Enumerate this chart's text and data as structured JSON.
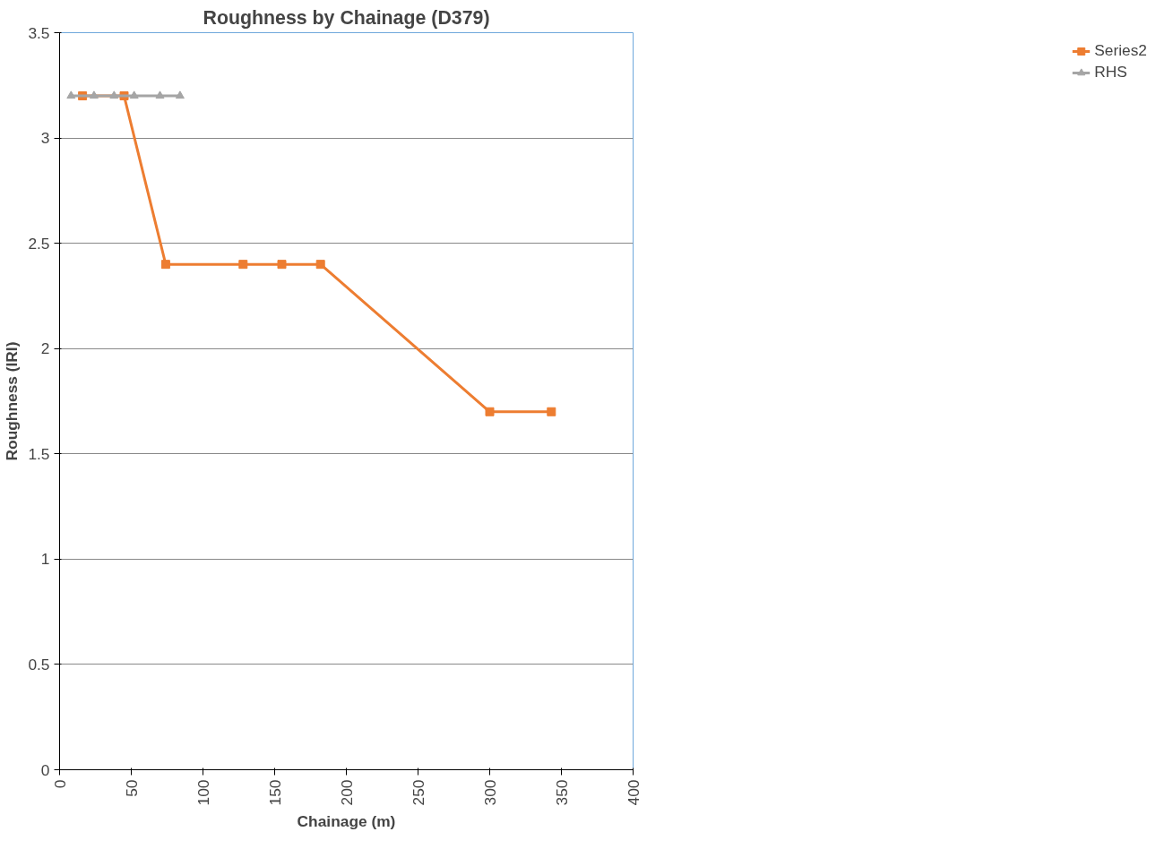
{
  "chart_data": {
    "type": "line",
    "title": "Roughness by Chainage (D379)",
    "xlabel": "Chainage (m)",
    "ylabel": "Roughness (IRI)",
    "xlim": [
      0,
      400
    ],
    "xticks": [
      0,
      50,
      100,
      150,
      200,
      250,
      300,
      350,
      400
    ],
    "ylim": [
      0,
      3.5
    ],
    "yticks": [
      0,
      0.5,
      1,
      1.5,
      2,
      2.5,
      3,
      3.5
    ],
    "grid": "y",
    "legend": "right",
    "series": [
      {
        "name": "Series2",
        "color": "#ed7d31",
        "marker": "square",
        "x": [
          16,
          45,
          74,
          128,
          155,
          182,
          300,
          343
        ],
        "values": [
          3.2,
          3.2,
          2.4,
          2.4,
          2.4,
          2.4,
          1.7,
          1.7
        ]
      },
      {
        "name": "RHS",
        "color": "#a5a5a5",
        "marker": "triangle",
        "x": [
          8,
          24,
          38,
          52,
          70,
          84
        ],
        "values": [
          3.2,
          3.2,
          3.2,
          3.2,
          3.2,
          3.2
        ]
      }
    ]
  }
}
